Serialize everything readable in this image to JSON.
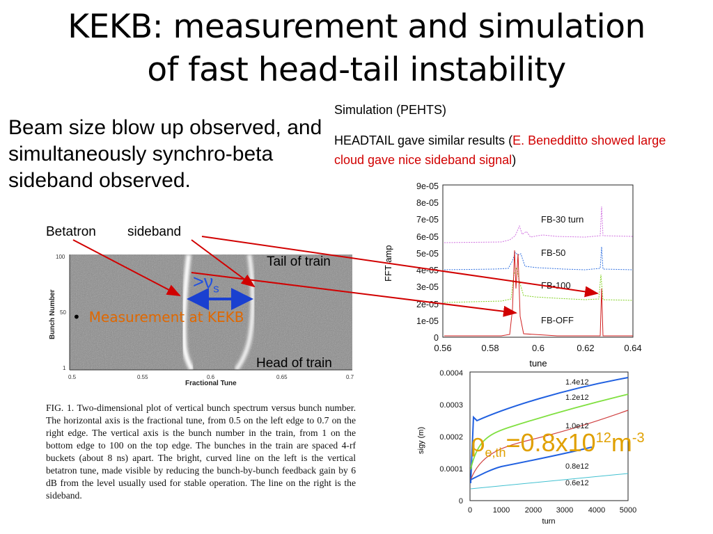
{
  "slide": {
    "title_line1": "KEKB: measurement and simulation",
    "title_line2": "of fast head-tail instability",
    "left_text": "Beam size blow up observed, and simultaneously synchro-beta sideband observed.",
    "sim_label": "Simulation (PEHTS)",
    "headtail_prefix": "HEADTAIL gave similar results (",
    "headtail_red": "E. Benedditto showed large cloud gave nice sideband signal",
    "headtail_suffix": ")",
    "betatron": "Betatron",
    "sideband": "sideband",
    "tail_of_train": "Tail of train",
    "head_of_train": "Head of train",
    "nu_s": ">ν",
    "nu_s_sub": "s",
    "bullet_marker": "•",
    "bullet": "Measurement at KEKB",
    "caption": "FIG. 1.   Two-dimensional plot of vertical bunch spectrum versus bunch number. The horizontal axis is the fractional tune, from 0.5 on the left edge to 0.7 on the right edge. The vertical axis is the bunch number in the train, from 1 on the bottom edge to 100 on the top edge. The bunches in the train are spaced 4-rf buckets (about 8 ns) apart. The bright, curved line on the left is the vertical betatron tune, made visible by reducing the bunch-by-bunch feedback gain by 6 dB from the level usually used for stable operation. The line on the right is the sideband.",
    "rho": "ρ",
    "rho_sub": "e,th",
    "rho_eq": "=0.8x10",
    "rho_exp": "12",
    "rho_unit": "m",
    "rho_unit_exp": "-3",
    "colors": {
      "red": "#d10000",
      "orange": "#e06800",
      "gold": "#e0a000",
      "blue": "#2050e0"
    }
  },
  "measurement_plot": {
    "x_ticks": [
      "0.5",
      "0.55",
      "0.6",
      "0.65",
      "0.7"
    ],
    "y_ticks": [
      "100",
      "50",
      "1"
    ],
    "xlabel": "Fractional Tune",
    "ylabel": "Bunch Number"
  },
  "fft_plot": {
    "x_ticks": [
      "0.56",
      "0.58",
      "0.6",
      "0.62",
      "0.64"
    ],
    "y_ticks": [
      "9e-05",
      "8e-05",
      "7e-05",
      "6e-05",
      "5e-05",
      "4e-05",
      "3e-05",
      "2e-05",
      "1e-05",
      "0"
    ],
    "xlabel": "tune",
    "ylabel": "FFT amp",
    "labels": [
      "FB-30 turn",
      "FB-50",
      "FB-100",
      "FB-OFF"
    ]
  },
  "sigy_plot": {
    "x_ticks": [
      "0",
      "1000",
      "2000",
      "3000",
      "4000",
      "5000"
    ],
    "y_ticks": [
      "0.0004",
      "0.0003",
      "0.0002",
      "0.0001",
      "0"
    ],
    "xlabel": "turn",
    "ylabel": "sigy (m)",
    "labels": [
      "1.4e12",
      "1.2e12",
      "1.0e12",
      "0.8e12",
      "0.6e12"
    ]
  }
}
